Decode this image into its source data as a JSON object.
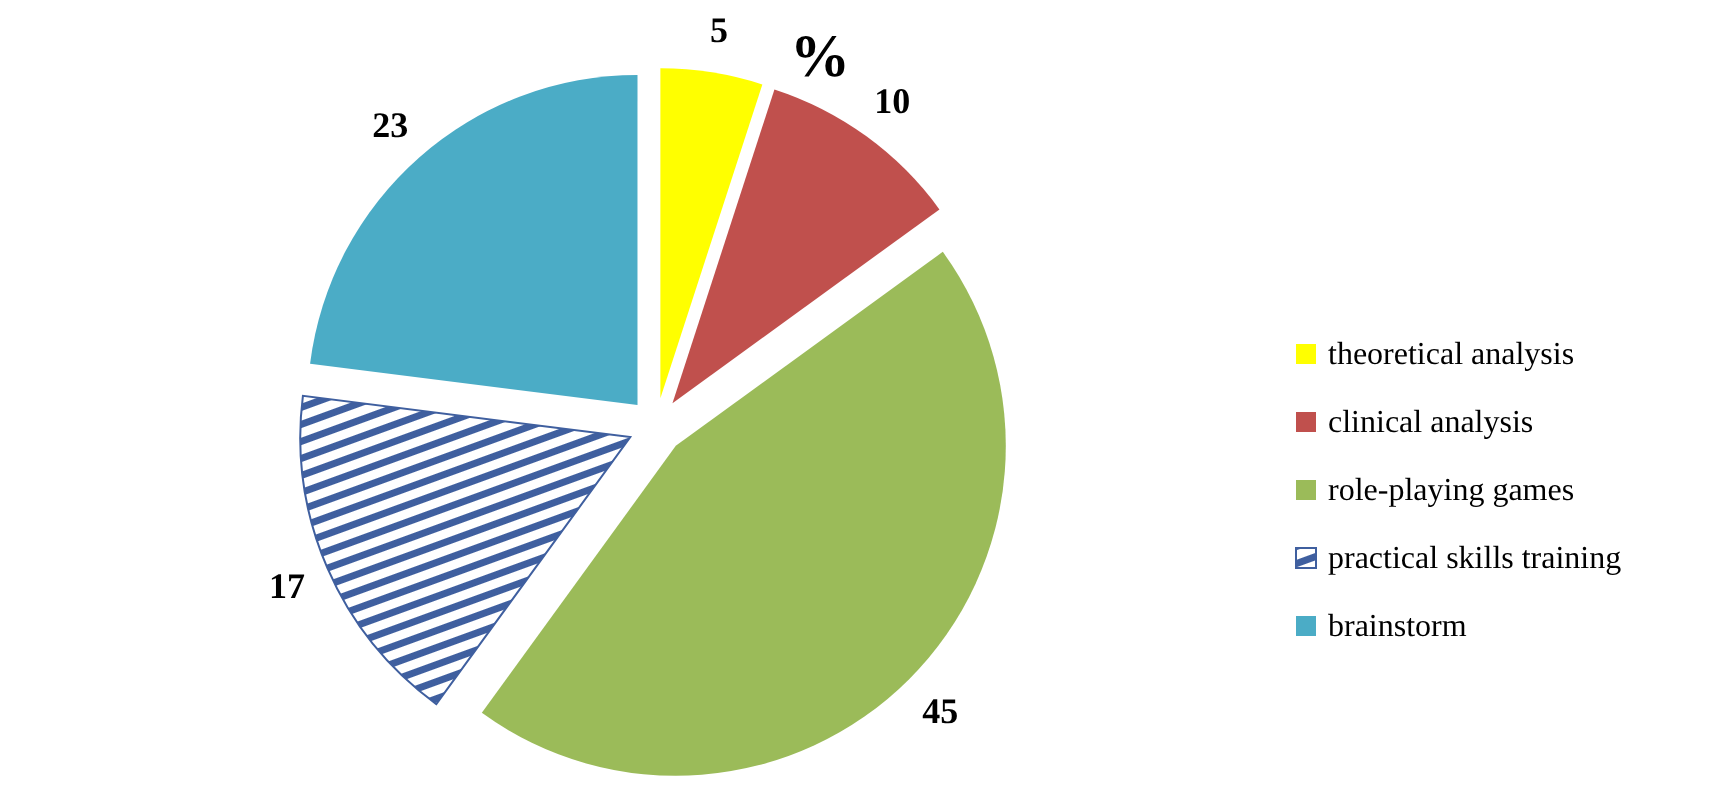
{
  "chart_data": {
    "type": "pie",
    "title": "%",
    "categories": [
      "theoretical analysis",
      "clinical analysis",
      "role-playing games",
      "practical skills training",
      "brainstorm"
    ],
    "values": [
      5,
      10,
      45,
      17,
      23
    ],
    "colors": [
      "#ffff00",
      "#c0504d",
      "#9bbb59",
      "#3f5f9f",
      "#4bacc6"
    ],
    "data_labels": true,
    "legend": "right"
  }
}
